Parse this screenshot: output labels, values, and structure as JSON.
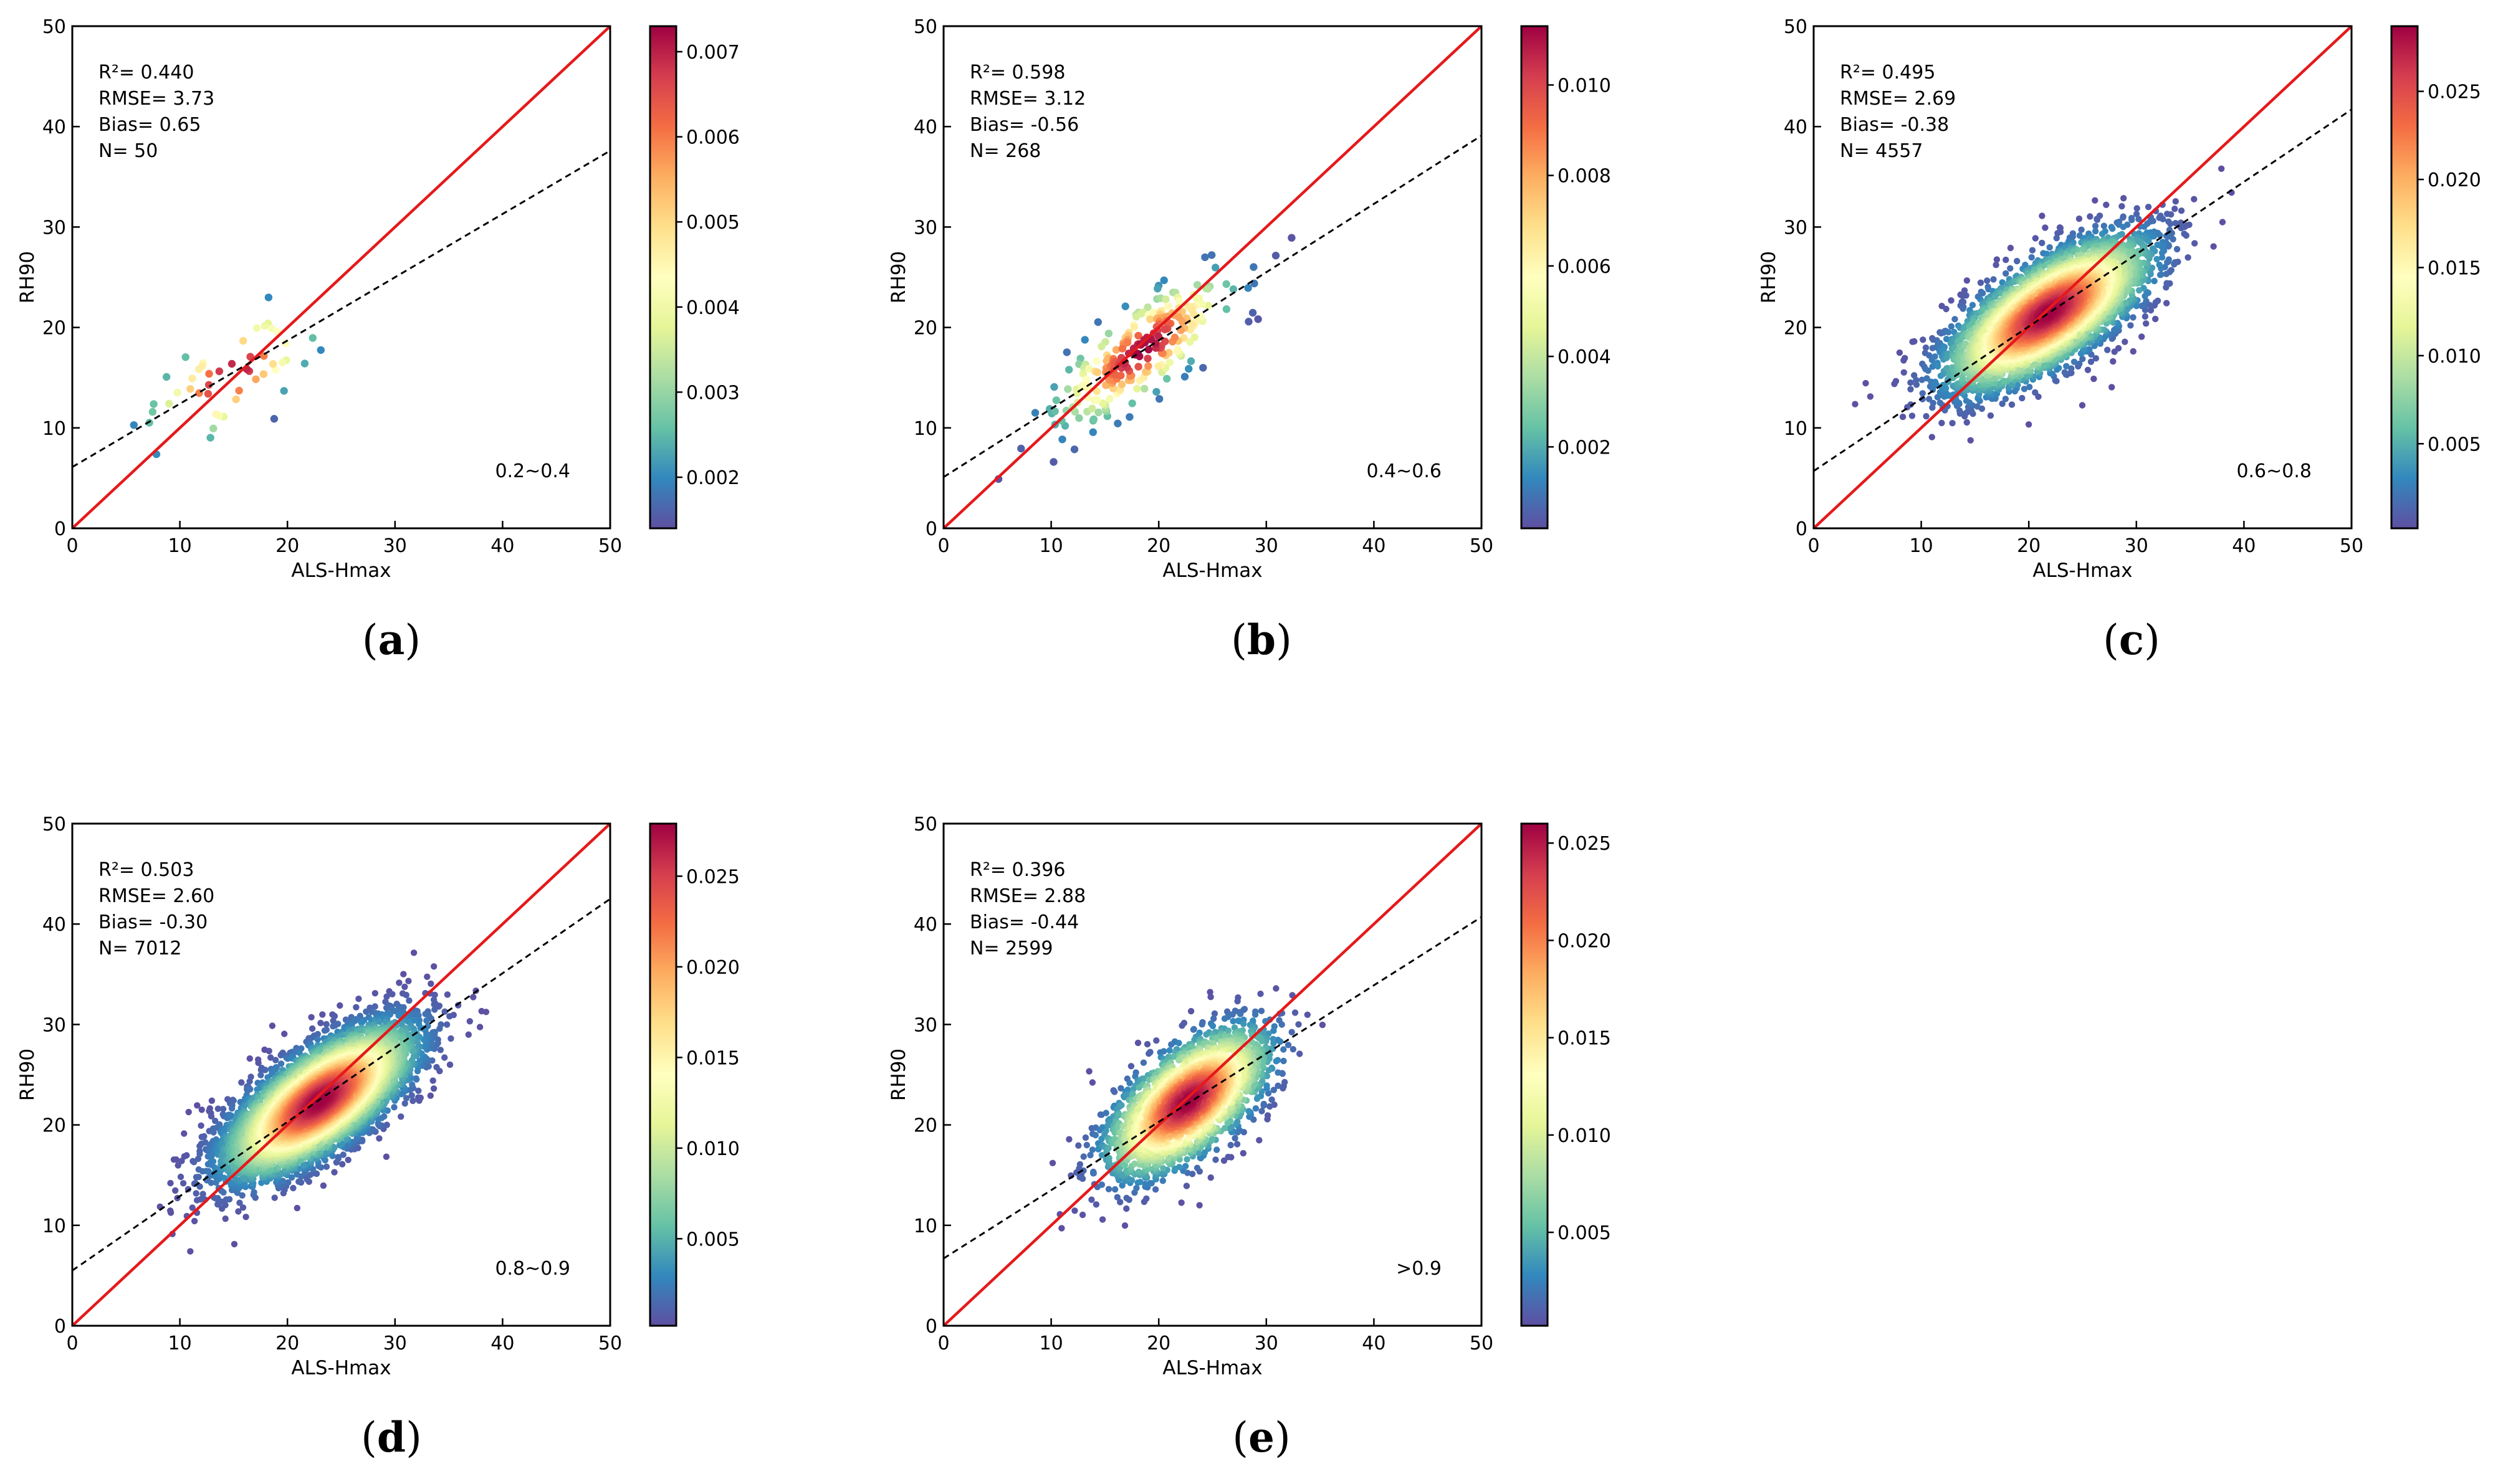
{
  "colors": {
    "one_to_one_line": "#e41a1c",
    "fit_line": "#000000",
    "colormap": "Spectral_r",
    "colormap_stops": [
      "#5e4fa2",
      "#3288bd",
      "#66c2a5",
      "#abdda4",
      "#e6f598",
      "#ffffbf",
      "#fee08b",
      "#fdae61",
      "#f46d43",
      "#d53e4f",
      "#9e0142"
    ]
  },
  "chart_data": [
    {
      "type": "scatter",
      "panel_label": "a",
      "xlabel": "ALS-Hmax",
      "ylabel": "RH90",
      "xlim": [
        0,
        50
      ],
      "ylim": [
        0,
        50
      ],
      "x_ticks": [
        0,
        10,
        20,
        30,
        40,
        50
      ],
      "y_ticks": [
        0,
        10,
        20,
        30,
        40,
        50
      ],
      "stats": [
        "R²= 0.440",
        "RMSE= 3.73",
        "Bias= 0.65",
        "N= 50"
      ],
      "range_label": "0.2~0.4",
      "fit": {
        "intercept": 6.1,
        "slope": 0.63
      },
      "n": 50,
      "center": [
        14.8,
        15.3
      ],
      "spread": [
        4.0,
        3.6
      ],
      "correlation": 0.66,
      "colorbar": {
        "range": [
          0.0014,
          0.0073
        ],
        "ticks": [
          0.002,
          0.003,
          0.004,
          0.005,
          0.006,
          0.007
        ],
        "tick_labels": [
          "0.002",
          "0.003",
          "0.004",
          "0.005",
          "0.006",
          "0.007"
        ]
      }
    },
    {
      "type": "scatter",
      "panel_label": "b",
      "xlabel": "ALS-Hmax",
      "ylabel": "RH90",
      "xlim": [
        0,
        50
      ],
      "ylim": [
        0,
        50
      ],
      "x_ticks": [
        0,
        10,
        20,
        30,
        40,
        50
      ],
      "y_ticks": [
        0,
        10,
        20,
        30,
        40,
        50
      ],
      "stats": [
        "R²= 0.598",
        "RMSE= 3.12",
        "Bias= -0.56",
        "N= 268"
      ],
      "range_label": "0.4~0.6",
      "fit": {
        "intercept": 5.1,
        "slope": 0.68
      },
      "n": 268,
      "center": [
        18.5,
        17.8
      ],
      "spread": [
        4.3,
        3.9
      ],
      "correlation": 0.77,
      "colorbar": {
        "range": [
          0.0002,
          0.0113
        ],
        "ticks": [
          0.002,
          0.004,
          0.006,
          0.008,
          0.01
        ],
        "tick_labels": [
          "0.002",
          "0.004",
          "0.006",
          "0.008",
          "0.010"
        ]
      }
    },
    {
      "type": "scatter",
      "panel_label": "c",
      "xlabel": "ALS-Hmax",
      "ylabel": "RH90",
      "xlim": [
        0,
        50
      ],
      "ylim": [
        0,
        50
      ],
      "x_ticks": [
        0,
        10,
        20,
        30,
        40,
        50
      ],
      "y_ticks": [
        0,
        10,
        20,
        30,
        40,
        50
      ],
      "stats": [
        "R²= 0.495",
        "RMSE= 2.69",
        "Bias= -0.38",
        "N= 4557"
      ],
      "range_label": "0.6~0.8",
      "fit": {
        "intercept": 5.7,
        "slope": 0.72
      },
      "n": 4557,
      "center": [
        21.8,
        21.4
      ],
      "spread": [
        4.6,
        3.7
      ],
      "correlation": 0.7,
      "colorbar": {
        "range": [
          0.0002,
          0.0287
        ],
        "ticks": [
          0.005,
          0.01,
          0.015,
          0.02,
          0.025
        ],
        "tick_labels": [
          "0.005",
          "0.010",
          "0.015",
          "0.020",
          "0.025"
        ]
      }
    },
    {
      "type": "scatter",
      "panel_label": "d",
      "xlabel": "ALS-Hmax",
      "ylabel": "RH90",
      "xlim": [
        0,
        50
      ],
      "ylim": [
        0,
        50
      ],
      "x_ticks": [
        0,
        10,
        20,
        30,
        40,
        50
      ],
      "y_ticks": [
        0,
        10,
        20,
        30,
        40,
        50
      ],
      "stats": [
        "R²= 0.503",
        "RMSE= 2.60",
        "Bias= -0.30",
        "N= 7012"
      ],
      "range_label": "0.8~0.9",
      "fit": {
        "intercept": 5.5,
        "slope": 0.74
      },
      "n": 7012,
      "center": [
        23.0,
        22.4
      ],
      "spread": [
        4.3,
        3.7
      ],
      "correlation": 0.71,
      "colorbar": {
        "range": [
          0.0002,
          0.0279
        ],
        "ticks": [
          0.005,
          0.01,
          0.015,
          0.02,
          0.025
        ],
        "tick_labels": [
          "0.005",
          "0.010",
          "0.015",
          "0.020",
          "0.025"
        ]
      }
    },
    {
      "type": "scatter",
      "panel_label": "e",
      "xlabel": "ALS-Hmax",
      "ylabel": "RH90",
      "xlim": [
        0,
        50
      ],
      "ylim": [
        0,
        50
      ],
      "x_ticks": [
        0,
        10,
        20,
        30,
        40,
        50
      ],
      "y_ticks": [
        0,
        10,
        20,
        30,
        40,
        50
      ],
      "stats": [
        "R²= 0.396",
        "RMSE= 2.88",
        "Bias= -0.44",
        "N= 2599"
      ],
      "range_label": ">0.9",
      "fit": {
        "intercept": 6.7,
        "slope": 0.68
      },
      "n": 2599,
      "center": [
        22.7,
        22.3
      ],
      "spread": [
        3.7,
        3.6
      ],
      "correlation": 0.63,
      "colorbar": {
        "range": [
          0.0002,
          0.026
        ],
        "ticks": [
          0.005,
          0.01,
          0.015,
          0.02,
          0.025
        ],
        "tick_labels": [
          "0.005",
          "0.010",
          "0.015",
          "0.020",
          "0.025"
        ]
      }
    }
  ]
}
